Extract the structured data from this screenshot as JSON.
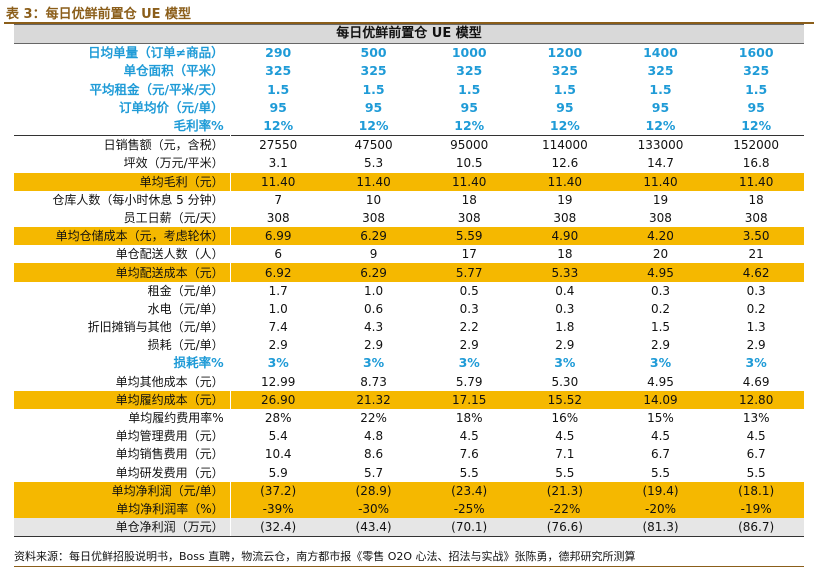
{
  "caption": "表 3：每日优鲜前置仓 UE 模型",
  "table": {
    "title": "每日优鲜前置仓 UE 模型",
    "rows": [
      {
        "label": "日均单量（订单≠商品）",
        "values": [
          "290",
          "500",
          "1000",
          "1200",
          "1400",
          "1600"
        ],
        "style": "blue"
      },
      {
        "label": "单仓面积（平米）",
        "values": [
          "325",
          "325",
          "325",
          "325",
          "325",
          "325"
        ],
        "style": "blue"
      },
      {
        "label": "平均租金（元/平米/天）",
        "values": [
          "1.5",
          "1.5",
          "1.5",
          "1.5",
          "1.5",
          "1.5"
        ],
        "style": "blue"
      },
      {
        "label": "订单均价（元/单）",
        "values": [
          "95",
          "95",
          "95",
          "95",
          "95",
          "95"
        ],
        "style": "blue"
      },
      {
        "label": "毛利率%",
        "values": [
          "12%",
          "12%",
          "12%",
          "12%",
          "12%",
          "12%"
        ],
        "style": "blue"
      },
      {
        "label": "日销售额（元，含税）",
        "values": [
          "27550",
          "47500",
          "95000",
          "114000",
          "133000",
          "152000"
        ],
        "style": "sep"
      },
      {
        "label": "坪效（万元/平米）",
        "values": [
          "3.1",
          "5.3",
          "10.5",
          "12.6",
          "14.7",
          "16.8"
        ],
        "style": "normal"
      },
      {
        "label": "单均毛利（元）",
        "values": [
          "11.40",
          "11.40",
          "11.40",
          "11.40",
          "11.40",
          "11.40"
        ],
        "style": "hl"
      },
      {
        "label": "仓库人数（每小时休息 5 分钟）",
        "values": [
          "7",
          "10",
          "18",
          "19",
          "19",
          "18"
        ],
        "style": "normal"
      },
      {
        "label": "员工日薪（元/天）",
        "values": [
          "308",
          "308",
          "308",
          "308",
          "308",
          "308"
        ],
        "style": "normal"
      },
      {
        "label": "单均仓储成本（元，考虑轮休）",
        "values": [
          "6.99",
          "6.29",
          "5.59",
          "4.90",
          "4.20",
          "3.50"
        ],
        "style": "hl"
      },
      {
        "label": "单仓配送人数（人）",
        "values": [
          "6",
          "9",
          "17",
          "18",
          "20",
          "21"
        ],
        "style": "normal"
      },
      {
        "label": "单均配送成本（元）",
        "values": [
          "6.92",
          "6.29",
          "5.77",
          "5.33",
          "4.95",
          "4.62"
        ],
        "style": "hl"
      },
      {
        "label": "租金（元/单）",
        "values": [
          "1.7",
          "1.0",
          "0.5",
          "0.4",
          "0.3",
          "0.3"
        ],
        "style": "normal"
      },
      {
        "label": "水电（元/单）",
        "values": [
          "1.0",
          "0.6",
          "0.3",
          "0.3",
          "0.2",
          "0.2"
        ],
        "style": "normal"
      },
      {
        "label": "折旧摊销与其他（元/单）",
        "values": [
          "7.4",
          "4.3",
          "2.2",
          "1.8",
          "1.5",
          "1.3"
        ],
        "style": "normal"
      },
      {
        "label": "损耗（元/单）",
        "values": [
          "2.9",
          "2.9",
          "2.9",
          "2.9",
          "2.9",
          "2.9"
        ],
        "style": "normal"
      },
      {
        "label": "损耗率%",
        "values": [
          "3%",
          "3%",
          "3%",
          "3%",
          "3%",
          "3%"
        ],
        "style": "blue"
      },
      {
        "label": "单均其他成本（元）",
        "values": [
          "12.99",
          "8.73",
          "5.79",
          "5.30",
          "4.95",
          "4.69"
        ],
        "style": "normal"
      },
      {
        "label": "单均履约成本（元）",
        "values": [
          "26.90",
          "21.32",
          "17.15",
          "15.52",
          "14.09",
          "12.80"
        ],
        "style": "hl"
      },
      {
        "label": "单均履约费用率%",
        "values": [
          "28%",
          "22%",
          "18%",
          "16%",
          "15%",
          "13%"
        ],
        "style": "normal"
      },
      {
        "label": "单均管理费用（元）",
        "values": [
          "5.4",
          "4.8",
          "4.5",
          "4.5",
          "4.5",
          "4.5"
        ],
        "style": "normal"
      },
      {
        "label": "单均销售费用（元）",
        "values": [
          "10.4",
          "8.6",
          "7.6",
          "7.1",
          "6.7",
          "6.7"
        ],
        "style": "normal"
      },
      {
        "label": "单均研发费用（元）",
        "values": [
          "5.9",
          "5.7",
          "5.5",
          "5.5",
          "5.5",
          "5.5"
        ],
        "style": "normal"
      },
      {
        "label": "单均净利润（元/单）",
        "values": [
          "(37.2)",
          "(28.9)",
          "(23.4)",
          "(21.3)",
          "(19.4)",
          "(18.1)"
        ],
        "style": "hl"
      },
      {
        "label": "单均净利润率（%）",
        "values": [
          "-39%",
          "-30%",
          "-25%",
          "-22%",
          "-20%",
          "-19%"
        ],
        "style": "hl"
      },
      {
        "label": "单仓净利润（万元）",
        "values": [
          "(32.4)",
          "(43.4)",
          "(70.1)",
          "(76.6)",
          "(81.3)",
          "(86.7)"
        ],
        "style": "grey"
      }
    ]
  },
  "source": "资料来源：每日优鲜招股说明书，Boss 直聘，物流云仓，南方都市报《零售 O2O 心法、招法与实战》张陈勇，德邦研究所测算"
}
